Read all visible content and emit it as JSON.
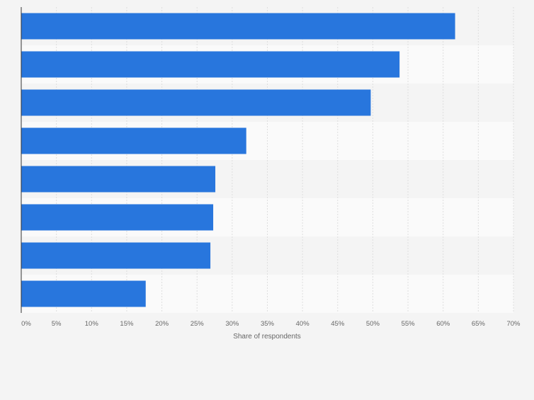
{
  "chart_data": {
    "type": "bar",
    "orientation": "horizontal",
    "categories": [
      "",
      "",
      "",
      "",
      "",
      "",
      "",
      ""
    ],
    "values": [
      61.7,
      53.8,
      49.7,
      32.0,
      27.6,
      27.3,
      26.9,
      17.7
    ],
    "xlabel": "Share of respondents",
    "xlim": [
      0,
      70
    ],
    "ticks": [
      0,
      5,
      10,
      15,
      20,
      25,
      30,
      35,
      40,
      45,
      50,
      55,
      60,
      65,
      70
    ],
    "tick_labels": [
      "0%",
      "5%",
      "10%",
      "15%",
      "20%",
      "25%",
      "30%",
      "35%",
      "40%",
      "45%",
      "50%",
      "55%",
      "60%",
      "65%",
      "70%"
    ],
    "grid": true,
    "bar_color": "#2876dd",
    "band_colors": [
      "#f4f4f4",
      "#fafafa"
    ],
    "grid_color": "#dedede"
  }
}
